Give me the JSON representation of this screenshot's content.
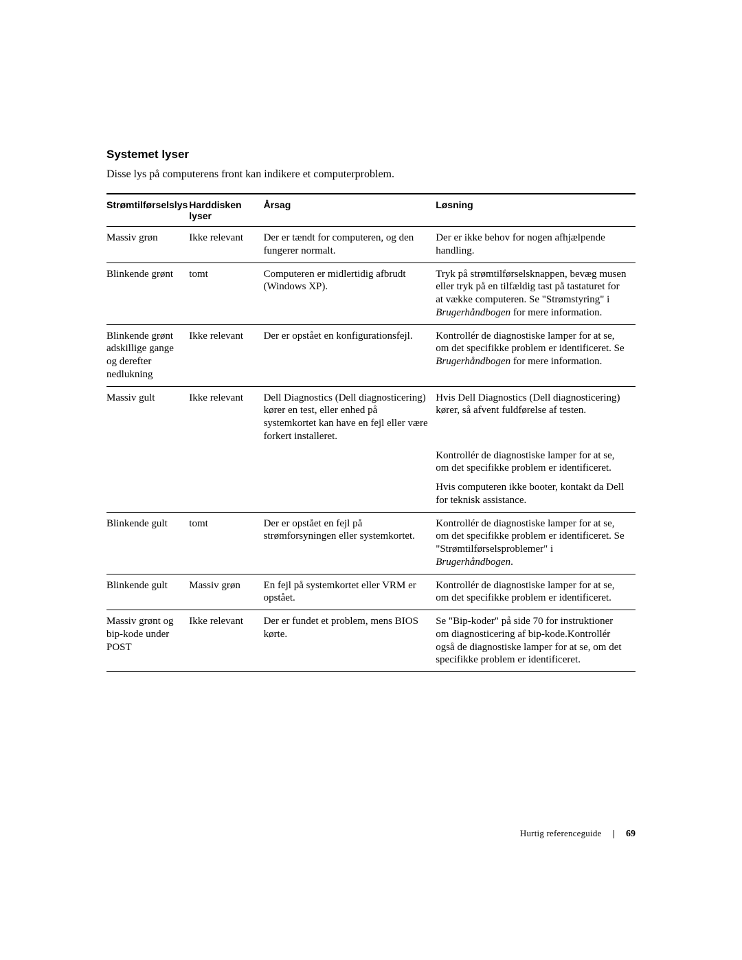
{
  "heading": "Systemet lyser",
  "intro": "Disse lys på computerens front kan indikere et computerproblem.",
  "columns": {
    "c1": "Strømtilførselslys",
    "c2a": "Harddisken",
    "c2b": "lyser",
    "c3": "Årsag",
    "c4": "Løsning"
  },
  "rows": {
    "r1": {
      "c1": "Massiv grøn",
      "c2": "Ikke relevant",
      "c3": "Der er tændt for computeren, og den fungerer normalt.",
      "c4": "Der er ikke behov for nogen afhjælpende handling."
    },
    "r2": {
      "c1": "Blinkende grønt",
      "c2": "tomt",
      "c3": "Computeren er midlertidig afbrudt (Windows XP).",
      "c4a": "Tryk på strømtilførselsknappen, bevæg musen eller tryk på en tilfældig tast på tastaturet for at vække computeren. Se \"Strømstyring\" i ",
      "c4b": "Brugerhåndbogen",
      "c4c": " for mere information."
    },
    "r3": {
      "c1": "Blinkende grønt adskillige gange og derefter nedlukning",
      "c2": "Ikke relevant",
      "c3": "Der er opstået en konfigurationsfejl.",
      "c4a": "Kontrollér de diagnostiske lamper for at se, om det specifikke problem er identificeret. Se ",
      "c4b": "Brugerhåndbogen",
      "c4c": " for mere information."
    },
    "r4": {
      "c1": "Massiv gult",
      "c2": "Ikke relevant",
      "c3": "Dell Diagnostics (Dell diagnosticering) kører en test, eller enhed på systemkortet kan have en fejl eller være forkert installeret.",
      "c4_1": "Hvis Dell Diagnostics (Dell diagnosticering) kører, så afvent fuldførelse af testen.",
      "c4_2": "Kontrollér de diagnostiske lamper for at se, om det specifikke problem er identificeret.",
      "c4_3": "Hvis computeren ikke booter, kontakt da Dell for teknisk assistance."
    },
    "r5": {
      "c1": "Blinkende gult",
      "c2": "tomt",
      "c3": "Der er opstået en fejl på strømforsyningen eller systemkortet.",
      "c4a": "Kontrollér de diagnostiske lamper for at se, om det specifikke problem er identificeret. Se \"Strømtilførselsproblemer\" i ",
      "c4b": "Brugerhåndbogen",
      "c4c": "."
    },
    "r6": {
      "c1": "Blinkende gult",
      "c2": "Massiv grøn",
      "c3": "En fejl på systemkortet eller VRM er opstået.",
      "c4": "Kontrollér de diagnostiske lamper for at se, om det specifikke problem er identificeret."
    },
    "r7": {
      "c1": "Massiv grønt og bip-kode under POST",
      "c2": "Ikke relevant",
      "c3": "Der er fundet et problem, mens BIOS kørte.",
      "c4": "Se \"Bip-koder\" på side 70 for instruktioner om diagnosticering af bip-kode.Kontrollér også de diagnostiske lamper for at se, om det specifikke problem er identificeret."
    }
  },
  "footer": {
    "label": "Hurtig referenceguide",
    "page": "69"
  }
}
